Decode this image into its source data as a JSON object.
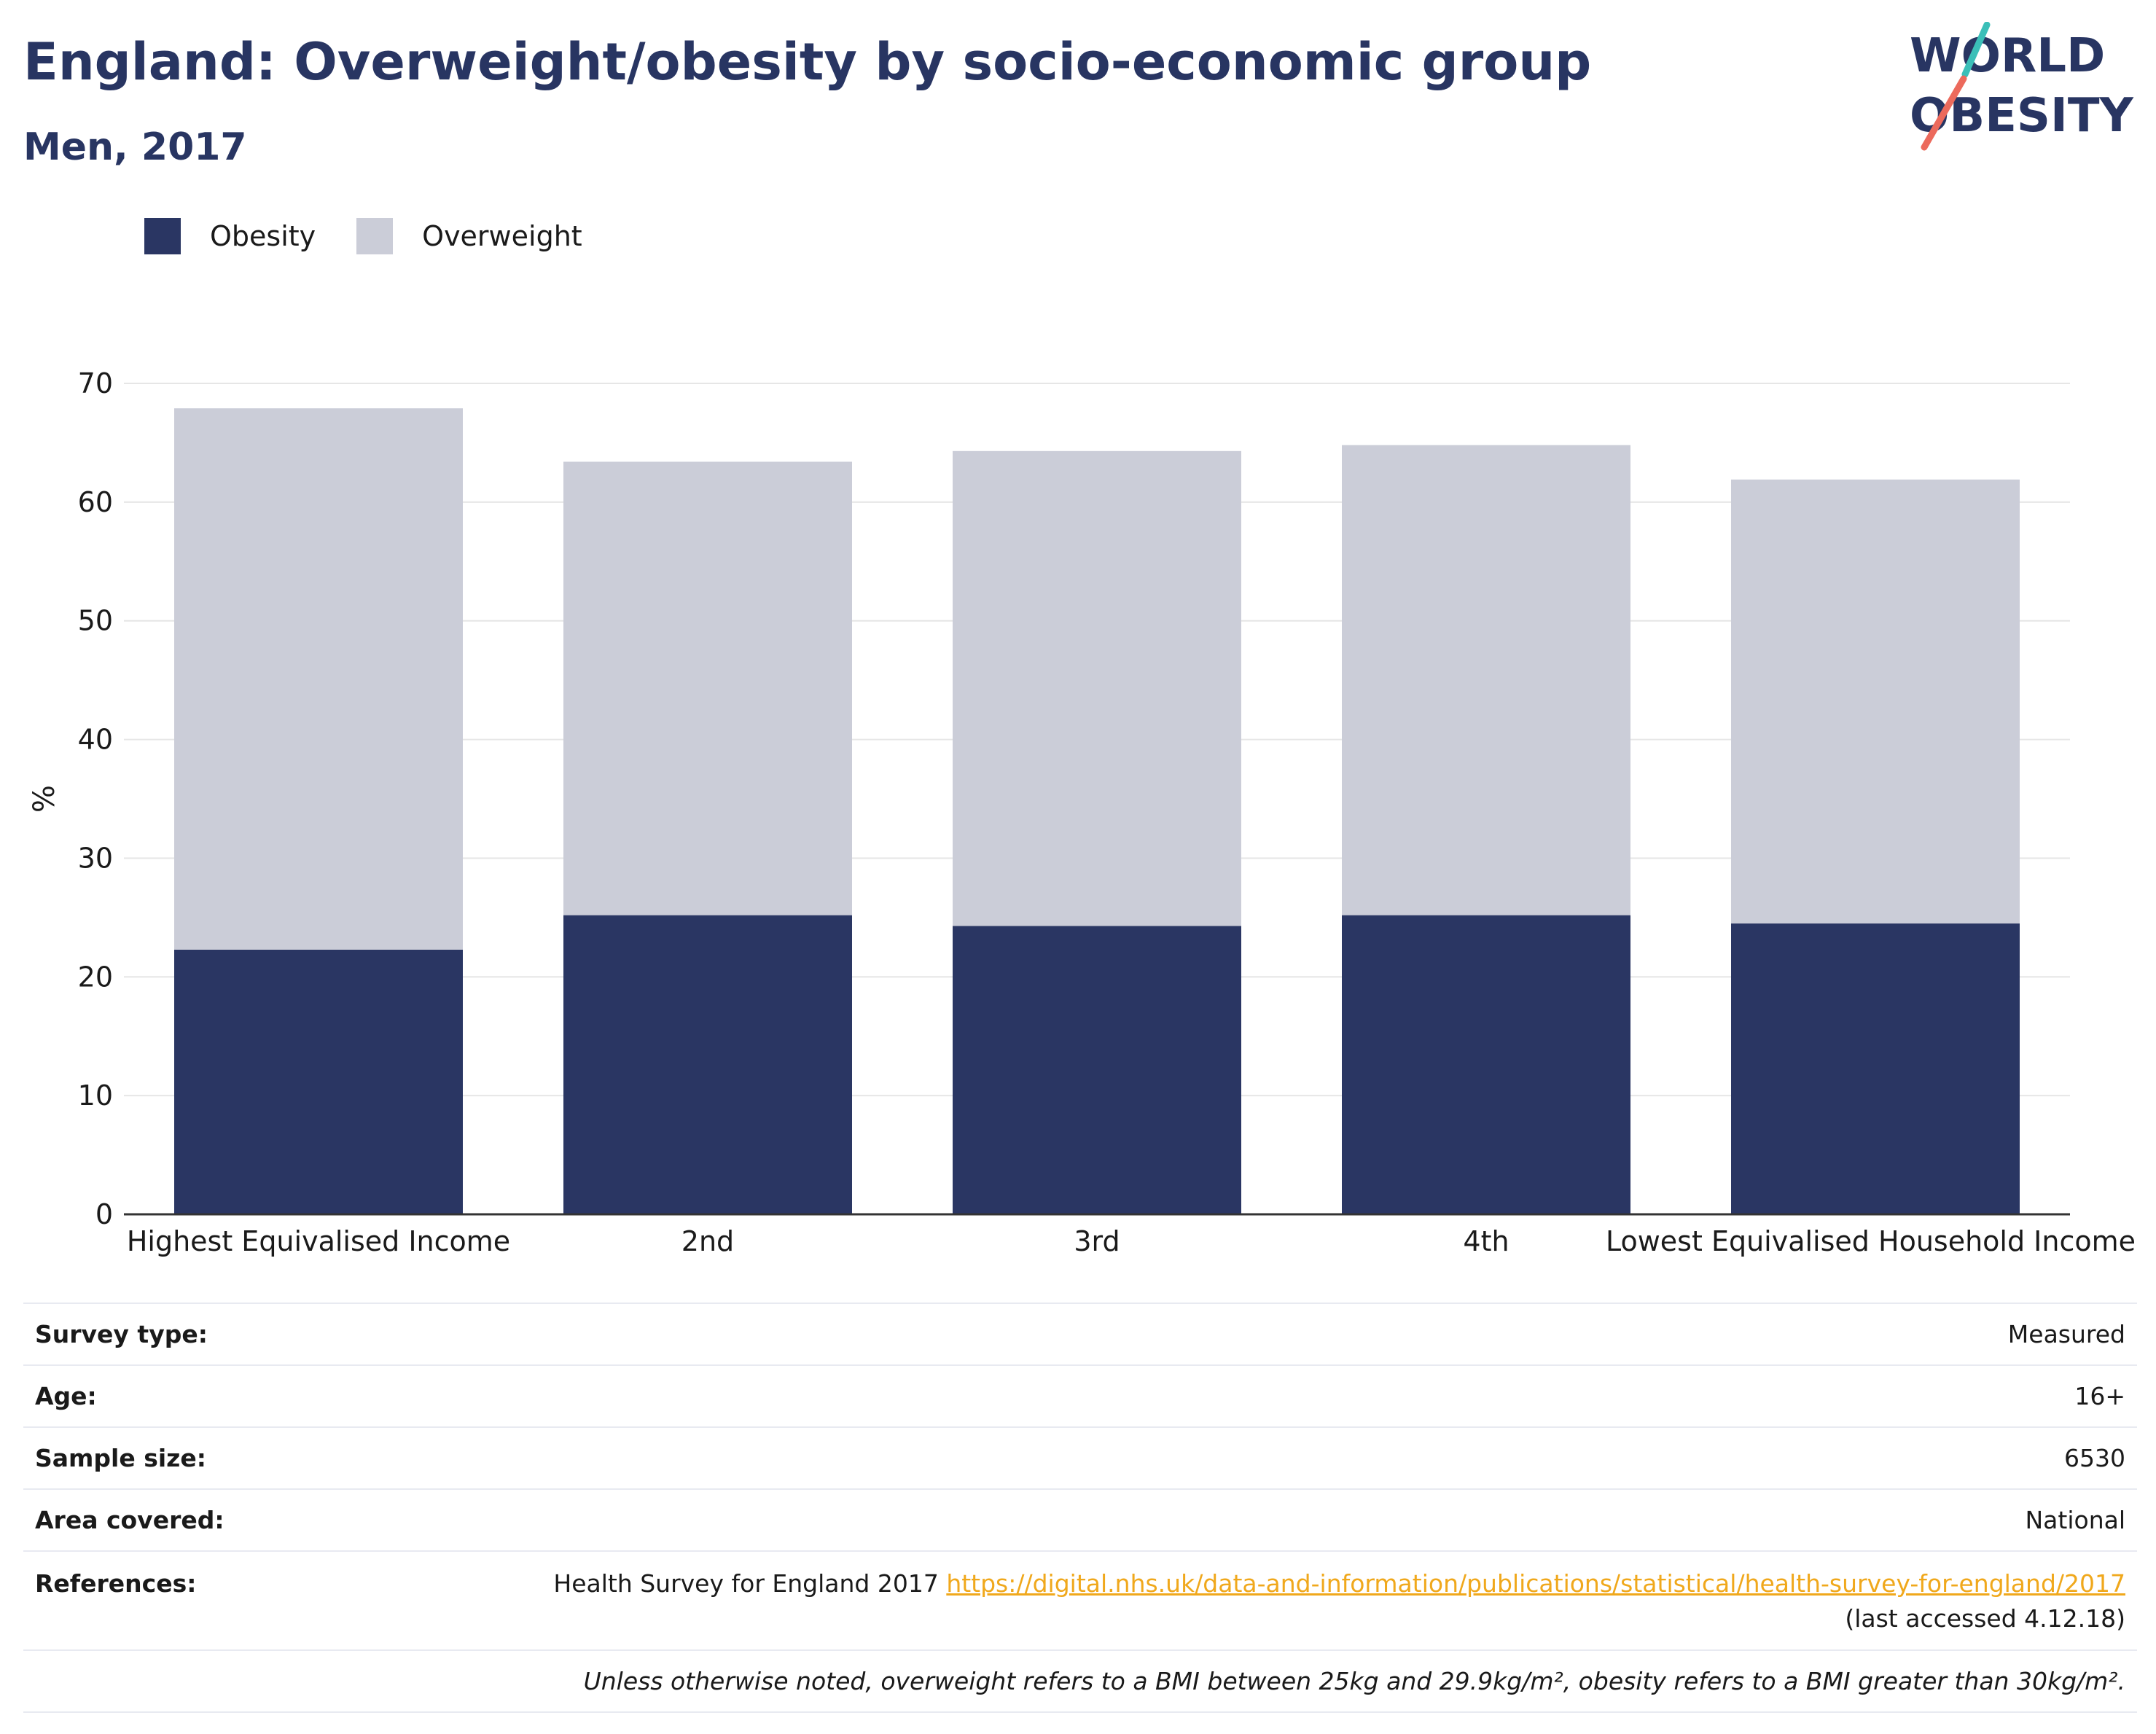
{
  "header": {
    "title": "England: Overweight/obesity by socio-economic group",
    "subtitle": "Men, 2017"
  },
  "logo": {
    "line1": "WORLD",
    "line2": "OBESITY",
    "colors": {
      "text": "#283562",
      "slash_top": "#3bbfb8",
      "slash_bottom": "#ec6a5c"
    }
  },
  "legend": [
    {
      "label": "Obesity",
      "color": "#2a3663"
    },
    {
      "label": "Overweight",
      "color": "#cbcdd8"
    }
  ],
  "chart_data": {
    "type": "bar",
    "stacked": true,
    "categories": [
      "Highest Equivalised Income",
      "2nd",
      "3rd",
      "4th",
      "Lowest Equivalised Household Income"
    ],
    "series": [
      {
        "name": "Obesity",
        "color": "#2a3663",
        "values": [
          22.3,
          25.2,
          24.3,
          25.2,
          24.5
        ]
      },
      {
        "name": "Overweight",
        "color": "#cbcdd8",
        "values": [
          45.6,
          38.2,
          40.0,
          39.6,
          37.4
        ]
      }
    ],
    "ylabel": "%",
    "xlabel": "",
    "ylim": [
      0,
      70
    ],
    "yticks": [
      0,
      10,
      20,
      30,
      40,
      50,
      60,
      70
    ],
    "grid": true,
    "legend_position": "top-left"
  },
  "meta": {
    "survey_type": {
      "label": "Survey type:",
      "value": "Measured"
    },
    "age": {
      "label": "Age:",
      "value": "16+"
    },
    "sample_size": {
      "label": "Sample size:",
      "value": "6530"
    },
    "area": {
      "label": "Area covered:",
      "value": "National"
    },
    "references": {
      "label": "References:",
      "text": "Health Survey for England 2017",
      "url": "https://digital.nhs.uk/data-and-information/publications/statistical/health-survey-for-england/2017",
      "accessed": "(last accessed 4.12.18)"
    },
    "note": "Unless otherwise noted, overweight refers to a BMI between 25kg and 29.9kg/m², obesity refers to a BMI greater than 30kg/m²."
  }
}
